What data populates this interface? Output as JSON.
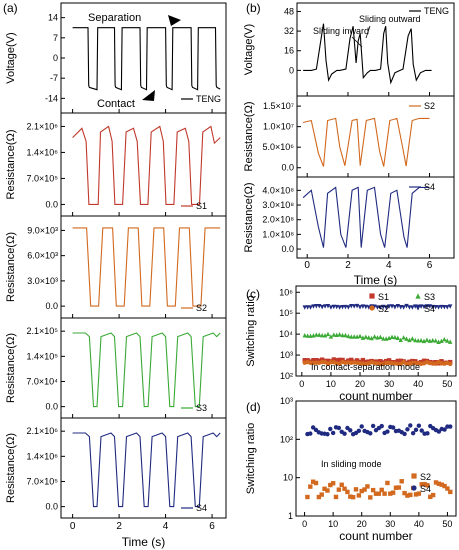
{
  "figure": {
    "panel_letters": [
      "(a)",
      "(b)",
      "(c)",
      "(d)"
    ]
  },
  "chart_data": [
    {
      "panel": "(a)",
      "type": "line",
      "subplots": [
        {
          "ylabel": "Voltage(V)",
          "yticks": [
            "14",
            "7",
            "0",
            "-7",
            "-14"
          ],
          "ylim": [
            -17,
            17
          ],
          "series": [
            {
              "name": "TENG",
              "color": "#000000",
              "x": [
                0.0,
                0.03,
                0.06,
                0.66,
                0.69,
                0.72,
                1.05,
                1.08,
                1.11,
                1.8,
                1.83,
                1.86,
                2.1,
                2.13,
                2.16,
                2.9,
                2.93,
                2.96,
                3.18,
                3.21,
                3.24,
                4.0,
                4.03,
                4.06,
                4.28,
                4.31,
                4.34,
                5.1,
                5.13,
                5.16,
                5.38,
                5.41,
                5.44,
                6.15,
                6.18,
                6.21,
                6.35
              ],
              "y": [
                10.5,
                10.5,
                10.5,
                10.5,
                -9.5,
                -10.2,
                -11.0,
                10.5,
                10.5,
                10.5,
                -9.5,
                -10.2,
                -11.0,
                10.5,
                10.5,
                10.5,
                -9.5,
                -10.2,
                -11.0,
                10.5,
                10.5,
                10.5,
                -9.5,
                -10.2,
                -11.0,
                10.5,
                10.5,
                10.5,
                -9.5,
                -10.2,
                -11.0,
                10.5,
                10.5,
                10.5,
                -9.5,
                -10.2,
                -10.8
              ]
            }
          ],
          "legend": "TENG",
          "annotations": [
            "Separation",
            "Contact"
          ]
        },
        {
          "ylabel": "Resistance(Ω)",
          "yticks": [
            "2.1×10⁶",
            "1.4×10⁶",
            "7.0×10⁵",
            "0.0"
          ],
          "ylim": [
            -150000,
            2300000
          ],
          "series": [
            {
              "name": "S1",
              "color": "#c0392b",
              "x": [
                0.0,
                0.4,
                0.58,
                0.7,
                0.92,
                1.1,
                1.2,
                1.55,
                1.7,
                1.82,
                2.0,
                2.15,
                2.3,
                2.62,
                2.78,
                2.92,
                3.1,
                3.24,
                3.38,
                3.75,
                3.9,
                4.02,
                4.22,
                4.36,
                4.5,
                4.85,
                5.0,
                5.12,
                5.32,
                5.46,
                5.6,
                5.95,
                6.1,
                6.35
              ],
              "y": [
                1800000,
                2050000,
                1700000,
                0,
                0,
                0,
                1950000,
                2100000,
                1700000,
                0,
                0,
                0,
                1950000,
                2050000,
                1700000,
                0,
                0,
                0,
                1950000,
                2100000,
                1700000,
                0,
                0,
                0,
                1950000,
                2050000,
                1700000,
                0,
                0,
                0,
                1950000,
                2100000,
                1650000,
                1800000
              ]
            }
          ],
          "legend": "S1"
        },
        {
          "ylabel": "Resistance(Ω)",
          "yticks": [
            "9.0×10³",
            "6.0×10³",
            "3.0×10³",
            "0.0"
          ],
          "ylim": [
            -700,
            10000
          ],
          "series": [
            {
              "name": "S2",
              "color": "#d2691e",
              "x": [
                0.0,
                0.6,
                0.78,
                0.95,
                1.12,
                1.3,
                1.72,
                1.88,
                2.05,
                2.22,
                2.4,
                2.82,
                2.98,
                3.15,
                3.32,
                3.5,
                3.92,
                4.08,
                4.25,
                4.42,
                4.6,
                5.02,
                5.18,
                5.35,
                5.52,
                5.7,
                6.12,
                6.35
              ],
              "y": [
                9300,
                9300,
                0,
                0,
                0,
                9300,
                9300,
                0,
                0,
                0,
                9300,
                9300,
                0,
                0,
                0,
                9300,
                9300,
                0,
                0,
                0,
                9300,
                9300,
                0,
                0,
                0,
                9300,
                9300,
                9300
              ]
            }
          ],
          "legend": "S2"
        },
        {
          "ylabel": "Resistance(Ω)",
          "yticks": [
            "2.1×10⁵",
            "1.4×10⁵",
            "7.0×10⁴",
            "0.0"
          ],
          "ylim": [
            -15000,
            230000
          ],
          "series": [
            {
              "name": "S3",
              "color": "#3aaa35",
              "x": [
                0.0,
                0.55,
                0.72,
                0.9,
                1.05,
                1.22,
                1.65,
                1.8,
                1.98,
                2.15,
                2.32,
                2.75,
                2.9,
                3.08,
                3.25,
                3.42,
                3.85,
                4.0,
                4.18,
                4.35,
                4.52,
                4.95,
                5.1,
                5.28,
                5.45,
                5.62,
                6.05,
                6.2,
                6.35
              ],
              "y": [
                205000,
                205000,
                195000,
                0,
                0,
                195000,
                205000,
                195000,
                0,
                0,
                195000,
                205000,
                195000,
                0,
                0,
                195000,
                205000,
                195000,
                0,
                0,
                195000,
                205000,
                195000,
                0,
                0,
                195000,
                205000,
                195000,
                205000
              ]
            }
          ],
          "legend": "S3"
        },
        {
          "ylabel": "Resistance(Ω)",
          "yticks": [
            "2.1×10⁶",
            "1.4×10⁶",
            "7.0×10⁵",
            "0.0"
          ],
          "ylim": [
            -150000,
            2300000
          ],
          "series": [
            {
              "name": "S4",
              "color": "#1f2a80",
              "x": [
                0.0,
                0.55,
                0.72,
                0.9,
                1.05,
                1.22,
                1.65,
                1.8,
                1.98,
                2.15,
                2.32,
                2.75,
                2.9,
                3.08,
                3.25,
                3.42,
                3.85,
                4.0,
                4.18,
                4.35,
                4.52,
                4.95,
                5.1,
                5.28,
                5.45,
                5.62,
                6.05,
                6.2,
                6.35
              ],
              "y": [
                2050000,
                2050000,
                1950000,
                0,
                0,
                1950000,
                2050000,
                1950000,
                0,
                0,
                1950000,
                2050000,
                1950000,
                0,
                0,
                1950000,
                2050000,
                1950000,
                0,
                0,
                1950000,
                2050000,
                1950000,
                0,
                0,
                1950000,
                2050000,
                1950000,
                2050000
              ]
            }
          ],
          "legend": "S4"
        }
      ],
      "xlabel": "Time (s)",
      "xticks": [
        "0",
        "2",
        "4",
        "6"
      ],
      "xlim": [
        -0.5,
        6.6
      ]
    },
    {
      "panel": "(b)",
      "type": "line",
      "subplots": [
        {
          "ylabel": "Voltage(V)",
          "yticks": [
            "48",
            "32",
            "16",
            "0"
          ],
          "ylim": [
            -16,
            50
          ],
          "series": [
            {
              "name": "TENG",
              "color": "#000000",
              "x": [
                -0.2,
                0.2,
                0.45,
                0.7,
                0.8,
                0.92,
                1.05,
                1.2,
                1.45,
                1.6,
                1.9,
                2.1,
                2.25,
                2.4,
                2.5,
                2.6,
                2.75,
                2.95,
                3.1,
                3.35,
                3.6,
                3.75,
                3.85,
                3.95,
                4.1,
                4.3,
                4.55,
                4.7,
                4.95,
                5.1,
                5.2,
                5.35,
                5.55,
                5.8,
                5.95,
                6.1
              ],
              "y": [
                0,
                0,
                1,
                28,
                38,
                8,
                -8,
                -3,
                0,
                0,
                1,
                26,
                36,
                6,
                24,
                30,
                -6,
                -2,
                0,
                0,
                1,
                30,
                36,
                6,
                -10,
                -2,
                0,
                1,
                28,
                34,
                5,
                -8,
                -2,
                0,
                0,
                0
              ]
            }
          ],
          "legend": "TENG",
          "annotations": [
            "Sliding inward",
            "Sliding outward"
          ]
        },
        {
          "ylabel": "Resistance(Ω)",
          "yticks": [
            "1.5×10⁷",
            "1.0×10⁷",
            "5.0×10⁶",
            "0.0"
          ],
          "ylim": [
            -800000,
            16000000
          ],
          "series": [
            {
              "name": "S2",
              "color": "#d2691e",
              "x": [
                -0.2,
                0.2,
                0.55,
                0.8,
                1.0,
                1.4,
                1.6,
                1.85,
                2.2,
                2.45,
                2.6,
                2.9,
                3.3,
                3.55,
                3.75,
                4.05,
                4.4,
                4.7,
                4.85,
                5.15,
                5.5,
                5.8,
                6.0
              ],
              "y": [
                11000000,
                11500000,
                3500000,
                300000,
                11500000,
                12000000,
                5000000,
                500000,
                11500000,
                11800000,
                500000,
                11500000,
                12000000,
                4000000,
                300000,
                11500000,
                12000000,
                4500000,
                400000,
                11500000,
                12000000,
                12000000,
                12000000
              ]
            }
          ],
          "legend": "S2"
        },
        {
          "ylabel": "Resistance(Ω)",
          "yticks": [
            "4.0×10⁸",
            "3.0×10⁸",
            "2.0×10⁸",
            "1.0×10⁸",
            "0.0"
          ],
          "ylim": [
            -20000000,
            450000000
          ],
          "series": [
            {
              "name": "S4",
              "color": "#1f2a80",
              "x": [
                -0.2,
                0.2,
                0.55,
                0.8,
                1.0,
                1.4,
                1.65,
                1.9,
                2.2,
                2.5,
                2.65,
                2.95,
                3.3,
                3.6,
                3.8,
                4.1,
                4.4,
                4.75,
                4.9,
                5.15,
                5.5,
                5.85,
                6.0
              ],
              "y": [
                350000000,
                400000000,
                150000000,
                10000000,
                380000000,
                420000000,
                100000000,
                10000000,
                400000000,
                420000000,
                10000000,
                400000000,
                420000000,
                100000000,
                10000000,
                380000000,
                400000000,
                80000000,
                10000000,
                380000000,
                420000000,
                420000000,
                420000000
              ]
            }
          ],
          "legend": "S4"
        }
      ],
      "xlabel": "Time (s)",
      "xticks": [
        "0",
        "2",
        "4",
        "6"
      ],
      "xlim": [
        -0.5,
        7.2
      ]
    },
    {
      "panel": "(c)",
      "type": "scatter",
      "xlabel": "count number",
      "ylabel": "Switching ratio",
      "xticks": [
        "0",
        "10",
        "20",
        "30",
        "40",
        "50"
      ],
      "xlim": [
        -2,
        53
      ],
      "ylim_log10": [
        2,
        6.3
      ],
      "yticks": [
        "10²",
        "10³",
        "10⁴",
        "10⁵",
        "10⁶"
      ],
      "annotation": "In contact-separation mode",
      "series": [
        {
          "name": "S1",
          "color": "#c0392b",
          "marker": "square",
          "log10_mean": 2.75,
          "jitter": 0.06,
          "trend": -0.1
        },
        {
          "name": "S2",
          "color": "#d2691e",
          "marker": "circle",
          "log10_mean": 2.62,
          "jitter": 0.05,
          "trend": 0.0
        },
        {
          "name": "S3",
          "color": "#3aaa35",
          "marker": "triangle-up",
          "log10_mean": 4.0,
          "jitter": 0.07,
          "trend": -0.32
        },
        {
          "name": "S4",
          "color": "#1f2a80",
          "marker": "triangle-down",
          "log10_mean": 5.3,
          "jitter": 0.04,
          "trend": 0.0
        }
      ],
      "count": 51,
      "legend_position": "top-right"
    },
    {
      "panel": "(d)",
      "type": "scatter",
      "xlabel": "count number",
      "ylabel": "Switching ratio",
      "xticks": [
        "0",
        "10",
        "20",
        "30",
        "40",
        "50"
      ],
      "xlim": [
        -3,
        53
      ],
      "ylim_log10": [
        0,
        3
      ],
      "yticks": [
        "1",
        "10",
        "10²",
        "10³"
      ],
      "annotation": "In sliding mode",
      "series": [
        {
          "name": "S2",
          "color": "#d2691e",
          "marker": "square",
          "log10_mean": 0.7,
          "jitter": 0.22,
          "trend": 0.0
        },
        {
          "name": "S4",
          "color": "#1f2a80",
          "marker": "circle",
          "log10_mean": 2.25,
          "jitter": 0.12,
          "trend": 0.0
        }
      ],
      "count": 51,
      "legend_position": "middle-right"
    }
  ]
}
